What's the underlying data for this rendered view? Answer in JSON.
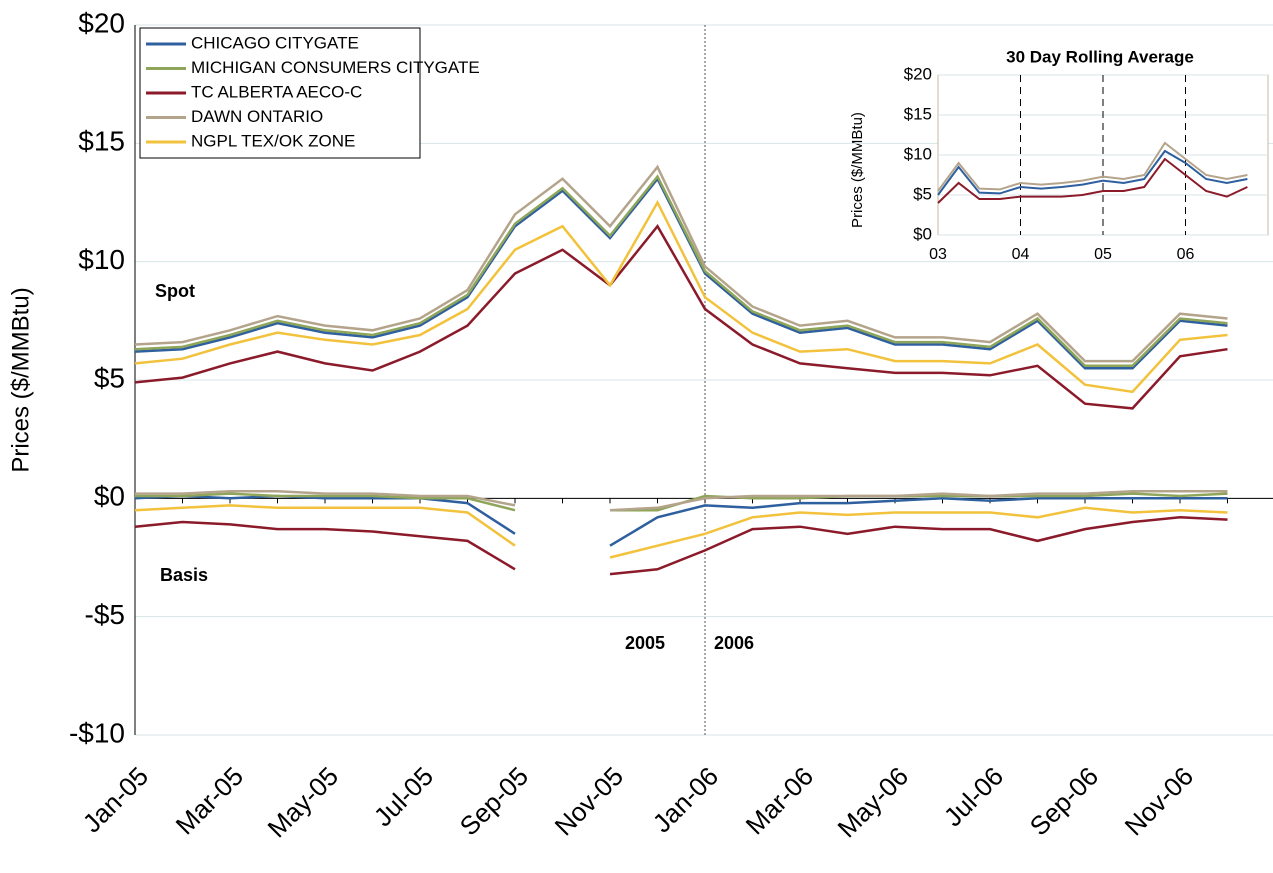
{
  "chart_data": [
    {
      "type": "line",
      "y_label": "Prices ($/MMBtu)",
      "annotations": [
        "Spot",
        "Basis",
        "2005",
        "2006"
      ],
      "categories": [
        "Jan-05",
        null,
        "Mar-05",
        null,
        "May-05",
        null,
        "Jul-05",
        null,
        "Sep-05",
        null,
        "Nov-05",
        null,
        "Jan-06",
        null,
        "Mar-06",
        null,
        "May-06",
        null,
        "Jul-06",
        null,
        "Sep-06",
        null,
        "Nov-06",
        null
      ],
      "ylim": [
        -10,
        20
      ],
      "yticks": [
        {
          "value": -10,
          "label": "-$10"
        },
        {
          "value": -5,
          "label": "-$5"
        },
        {
          "value": 0,
          "label": "$0"
        },
        {
          "value": 5,
          "label": "$5"
        },
        {
          "value": 10,
          "label": "$10"
        },
        {
          "value": 15,
          "label": "$15"
        },
        {
          "value": 20,
          "label": "$20"
        }
      ],
      "grid": true,
      "legend": "upper-left",
      "series": [
        {
          "name": "CHICAGO CITYGATE",
          "color": "#2e5f9e",
          "values": [
            6.2,
            6.3,
            6.8,
            7.4,
            7.0,
            6.8,
            7.3,
            8.5,
            11.5,
            13.0,
            11.0,
            13.5,
            9.5,
            7.8,
            7.0,
            7.2,
            6.5,
            6.5,
            6.3,
            7.5,
            5.5,
            5.5,
            7.5,
            7.3
          ],
          "basis": [
            0,
            0.1,
            0,
            0.1,
            0,
            0,
            0,
            -0.2,
            -1.5,
            null,
            -2.0,
            -0.8,
            -0.3,
            -0.4,
            -0.2,
            -0.2,
            -0.1,
            0,
            -0.1,
            0,
            0,
            0,
            0,
            0
          ]
        },
        {
          "name": "MICHIGAN CONSUMERS CITYGATE",
          "color": "#8fa65a",
          "values": [
            6.3,
            6.4,
            6.9,
            7.5,
            7.1,
            6.9,
            7.4,
            8.6,
            11.6,
            13.1,
            11.1,
            13.6,
            9.6,
            7.9,
            7.1,
            7.3,
            6.6,
            6.6,
            6.4,
            7.6,
            5.6,
            5.6,
            7.6,
            7.4
          ],
          "basis": [
            0.1,
            0.1,
            0.2,
            0.1,
            0.1,
            0.1,
            0,
            0,
            -0.5,
            null,
            -0.5,
            -0.5,
            0.1,
            0,
            0,
            0.1,
            0.1,
            0.1,
            0.1,
            0.1,
            0.1,
            0.2,
            0.1,
            0.2
          ]
        },
        {
          "name": "TC ALBERTA AECO-C",
          "color": "#8b1a2a",
          "values": [
            4.9,
            5.1,
            5.7,
            6.2,
            5.7,
            5.4,
            6.2,
            7.3,
            9.5,
            10.5,
            9.0,
            11.5,
            8.0,
            6.5,
            5.7,
            5.5,
            5.3,
            5.3,
            5.2,
            5.6,
            4.0,
            3.8,
            6.0,
            6.3
          ],
          "basis": [
            -1.2,
            -1.0,
            -1.1,
            -1.3,
            -1.3,
            -1.4,
            -1.6,
            -1.8,
            -3.0,
            null,
            -3.2,
            -3.0,
            -2.2,
            -1.3,
            -1.2,
            -1.5,
            -1.2,
            -1.3,
            -1.3,
            -1.8,
            -1.3,
            -1.0,
            -0.8,
            -0.9
          ]
        },
        {
          "name": "DAWN ONTARIO",
          "color": "#b5a48c",
          "values": [
            6.5,
            6.6,
            7.1,
            7.7,
            7.3,
            7.1,
            7.6,
            8.8,
            12.0,
            13.5,
            11.5,
            14.0,
            9.8,
            8.1,
            7.3,
            7.5,
            6.8,
            6.8,
            6.6,
            7.8,
            5.8,
            5.8,
            7.8,
            7.6
          ],
          "basis": [
            0.2,
            0.2,
            0.3,
            0.3,
            0.2,
            0.2,
            0.1,
            0.1,
            -0.3,
            null,
            -0.5,
            -0.4,
            0,
            0.1,
            0.1,
            0.1,
            0.1,
            0.2,
            0.1,
            0.2,
            0.2,
            0.3,
            0.3,
            0.3
          ]
        },
        {
          "name": "NGPL TEX/OK ZONE",
          "color": "#f2c23c",
          "values": [
            5.7,
            5.9,
            6.5,
            7.0,
            6.7,
            6.5,
            6.9,
            8.0,
            10.5,
            11.5,
            9.0,
            12.5,
            8.5,
            7.0,
            6.2,
            6.3,
            5.8,
            5.8,
            5.7,
            6.5,
            4.8,
            4.5,
            6.7,
            6.9
          ],
          "basis": [
            -0.5,
            -0.4,
            -0.3,
            -0.4,
            -0.4,
            -0.4,
            -0.4,
            -0.6,
            -2.0,
            null,
            -2.5,
            -2.0,
            -1.5,
            -0.8,
            -0.6,
            -0.7,
            -0.6,
            -0.6,
            -0.6,
            -0.8,
            -0.4,
            -0.6,
            -0.5,
            -0.6
          ]
        }
      ]
    },
    {
      "type": "line",
      "title": "30 Day Rolling Average",
      "y_label": "Prices ($/MMBtu)",
      "x": [
        2003.0,
        2003.25,
        2003.5,
        2003.75,
        2004.0,
        2004.25,
        2004.5,
        2004.75,
        2005.0,
        2005.25,
        2005.5,
        2005.75,
        2006.0,
        2006.25,
        2006.5,
        2006.75
      ],
      "xlim": [
        2003,
        2007
      ],
      "xticks": [
        {
          "value": 2003,
          "label": "03"
        },
        {
          "value": 2004,
          "label": "04"
        },
        {
          "value": 2005,
          "label": "05"
        },
        {
          "value": 2006,
          "label": "06"
        }
      ],
      "ylim": [
        0,
        20
      ],
      "yticks": [
        {
          "value": 0,
          "label": "$0"
        },
        {
          "value": 5,
          "label": "$5"
        },
        {
          "value": 10,
          "label": "$10"
        },
        {
          "value": 15,
          "label": "$15"
        },
        {
          "value": 20,
          "label": "$20"
        }
      ],
      "series": [
        {
          "color": "#2e5f9e",
          "values": [
            5.0,
            8.5,
            5.3,
            5.2,
            6.0,
            5.8,
            6.0,
            6.3,
            6.8,
            6.5,
            7.0,
            10.5,
            9.0,
            7.0,
            6.5,
            7.0
          ]
        },
        {
          "color": "#8b1a2a",
          "values": [
            4.0,
            6.5,
            4.5,
            4.5,
            4.8,
            4.8,
            4.8,
            5.0,
            5.5,
            5.5,
            6.0,
            9.5,
            7.5,
            5.5,
            4.8,
            6.0
          ]
        },
        {
          "color": "#b5a48c",
          "values": [
            5.5,
            9.0,
            5.8,
            5.7,
            6.5,
            6.3,
            6.5,
            6.8,
            7.3,
            7.0,
            7.5,
            11.5,
            9.5,
            7.5,
            7.0,
            7.5
          ]
        }
      ]
    }
  ]
}
